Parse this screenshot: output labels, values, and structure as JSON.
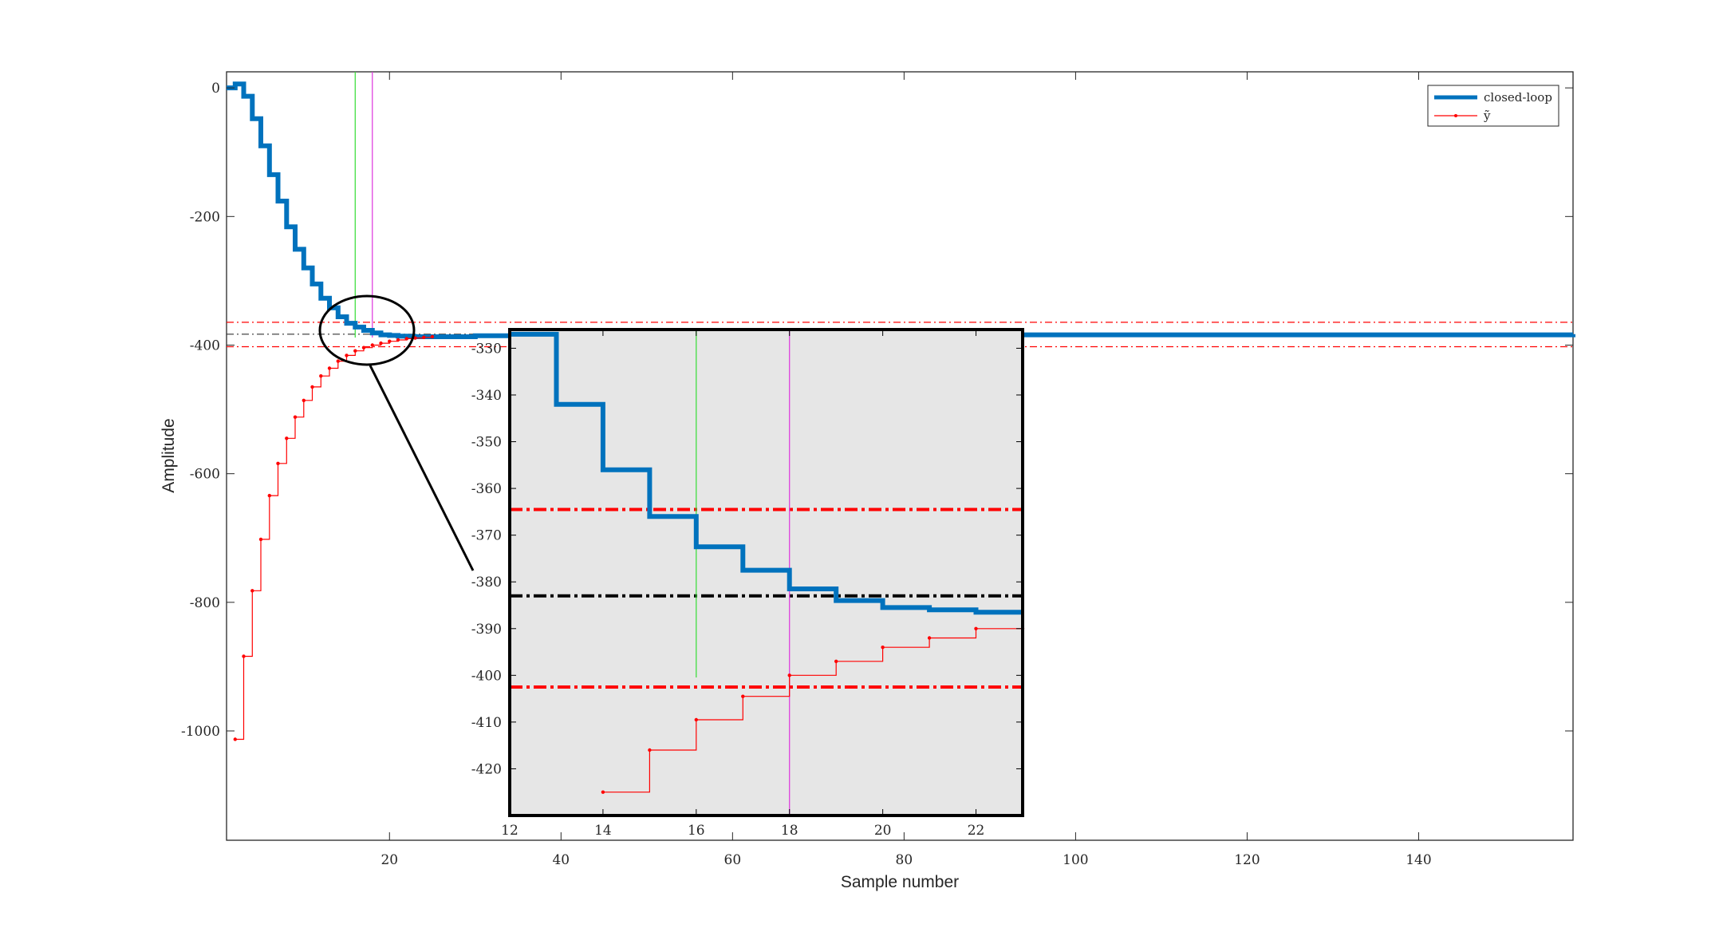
{
  "chart_data": [
    {
      "type": "line",
      "xlabel": "Sample number",
      "ylabel": "Amplitude",
      "xlim": [
        1,
        158
      ],
      "ylim": [
        -1170,
        25
      ],
      "xticks": [
        20,
        40,
        60,
        80,
        100,
        120,
        140
      ],
      "yticks": [
        0,
        -200,
        -400,
        -600,
        -800,
        -1000
      ],
      "legend_position": "top-right",
      "legend": [
        "closed-loop",
        "ỹ"
      ],
      "reference_lines": {
        "setpoint": -383,
        "band_upper": -364.5,
        "band_lower": -402.5,
        "vertical_green_x": 16,
        "vertical_magenta_x": 18
      },
      "series": [
        {
          "name": "closed-loop",
          "color": "#0072BD",
          "style": "stairs",
          "x": [
            1,
            2,
            3,
            4,
            5,
            6,
            7,
            8,
            9,
            10,
            11,
            12,
            13,
            14,
            15,
            16,
            17,
            18,
            19,
            20,
            21,
            22,
            23,
            30,
            40,
            158
          ],
          "y": [
            0,
            6,
            -13,
            -48,
            -90,
            -135,
            -176,
            -216,
            -251,
            -280,
            -305,
            -327,
            -342,
            -356,
            -366,
            -372,
            -377,
            -381,
            -384,
            -385,
            -386,
            -386.5,
            -387,
            -385.5,
            -384,
            -383
          ]
        },
        {
          "name": "ỹ",
          "color": "#FF0000",
          "style": "stairs-markers",
          "x": [
            2,
            3,
            4,
            5,
            6,
            7,
            8,
            9,
            10,
            11,
            12,
            13,
            14,
            15,
            16,
            17,
            18,
            19,
            20,
            21,
            22,
            23,
            24,
            25
          ],
          "y": [
            -1013,
            -884,
            -782,
            -702,
            -634,
            -584,
            -545,
            -512,
            -486,
            -465,
            -448,
            -436,
            -425,
            -416,
            -409,
            -404,
            -400,
            -397,
            -394,
            -392,
            -390,
            -389,
            -388,
            -387
          ]
        }
      ]
    },
    {
      "type": "line",
      "xlim": [
        12,
        23
      ],
      "ylim": [
        -430,
        -326
      ],
      "xticks": [
        12,
        14,
        16,
        18,
        20,
        22
      ],
      "yticks": [
        -330,
        -340,
        -350,
        -360,
        -370,
        -380,
        -390,
        -400,
        -410,
        -420
      ],
      "reference_lines": {
        "setpoint": -383,
        "band_upper": -364.5,
        "band_lower": -402.5,
        "vertical_green_x": 16,
        "vertical_magenta_x": 18
      },
      "series": [
        {
          "name": "closed-loop",
          "color": "#0072BD",
          "style": "stairs",
          "x": [
            12,
            13,
            14,
            15,
            16,
            17,
            18,
            19,
            20,
            21,
            22,
            23
          ],
          "y": [
            -327,
            -342,
            -356,
            -366,
            -372.5,
            -377.5,
            -381.5,
            -384,
            -385.5,
            -386,
            -386.5,
            -386.5
          ]
        },
        {
          "name": "ỹ",
          "color": "#FF0000",
          "style": "stairs-markers",
          "x": [
            14,
            15,
            16,
            17,
            18,
            19,
            20,
            21,
            22,
            23
          ],
          "y": [
            -425,
            -416,
            -409.5,
            -404.5,
            -400,
            -397,
            -394,
            -392,
            -390,
            -390
          ]
        }
      ]
    }
  ]
}
